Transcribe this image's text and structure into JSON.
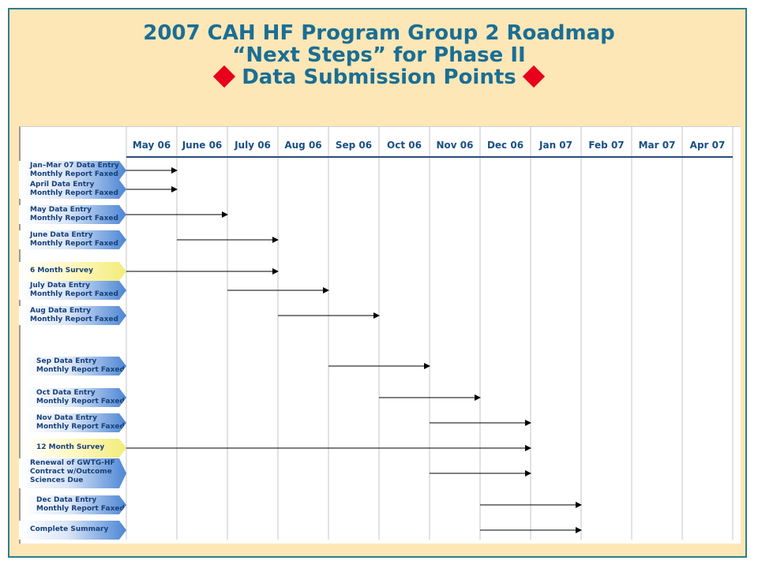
{
  "title": {
    "line1": "2007 CAH HF Program Group 2 Roadmap",
    "line2": "“Next Steps” for Phase II",
    "line3": "Data Submission Points"
  },
  "colors": {
    "frame_bg": "#fde7b6",
    "title": "#1a6e95",
    "diamond": "#e8001c",
    "label_blue": "#4c86d4",
    "label_yellow": "#f2ec7a"
  },
  "chart_data": {
    "type": "gantt",
    "months": [
      "May 06",
      "June 06",
      "July 06",
      "Aug 06",
      "Sep 06",
      "Oct 06",
      "Nov 06",
      "Dec 06",
      "Jan 07",
      "Feb 07",
      "Mar 07",
      "Apr 07"
    ],
    "tasks": [
      {
        "label": [
          "Jan–Mar 07 Data Entry",
          "Monthly Report Faxed"
        ],
        "style": "blue",
        "start": "May 06",
        "end": "June 06"
      },
      {
        "label": [
          "April Data Entry",
          "Monthly Report Faxed"
        ],
        "style": "blue",
        "start": "May 06",
        "end": "June 06"
      },
      {
        "label": [
          "May Data Entry",
          "Monthly Report Faxed"
        ],
        "style": "blue",
        "start": "May 06",
        "end": "July 06"
      },
      {
        "label": [
          "June Data Entry",
          "Monthly Report Faxed"
        ],
        "style": "blue",
        "start": "June 06",
        "end": "Aug 06"
      },
      {
        "label": [
          "6 Month Survey"
        ],
        "style": "yellow",
        "start": "May 06",
        "end": "Aug 06"
      },
      {
        "label": [
          "July Data Entry",
          "Monthly Report Faxed"
        ],
        "style": "blue",
        "start": "July 06",
        "end": "Sep 06"
      },
      {
        "label": [
          "Aug Data Entry",
          "Monthly Report Faxed"
        ],
        "style": "blue",
        "start": "Aug 06",
        "end": "Oct 06"
      },
      {
        "label": [
          "Sep Data Entry",
          "Monthly Report Faxed"
        ],
        "style": "blue",
        "start": "Sep 06",
        "end": "Nov 06"
      },
      {
        "label": [
          "Oct Data Entry",
          "Monthly Report Faxed"
        ],
        "style": "blue",
        "start": "Oct 06",
        "end": "Dec 06"
      },
      {
        "label": [
          "Nov Data Entry",
          "Monthly Report Faxed"
        ],
        "style": "blue",
        "start": "Nov 06",
        "end": "Jan 07"
      },
      {
        "label": [
          "12 Month Survey"
        ],
        "style": "yellow",
        "start": "May 06",
        "end": "Jan 07"
      },
      {
        "label": [
          "Renewal  of  GWTG-HF",
          "Contract  w/Outcome",
          "Sciences  Due"
        ],
        "style": "blue",
        "start": "Nov 06",
        "end": "Jan 07"
      },
      {
        "label": [
          "Dec Data Entry",
          "Monthly Report Faxed"
        ],
        "style": "blue",
        "start": "Dec 06",
        "end": "Feb 07"
      },
      {
        "label": [
          "Complete Summary"
        ],
        "style": "blue",
        "start": "Dec 06",
        "end": "Feb 07"
      }
    ]
  }
}
